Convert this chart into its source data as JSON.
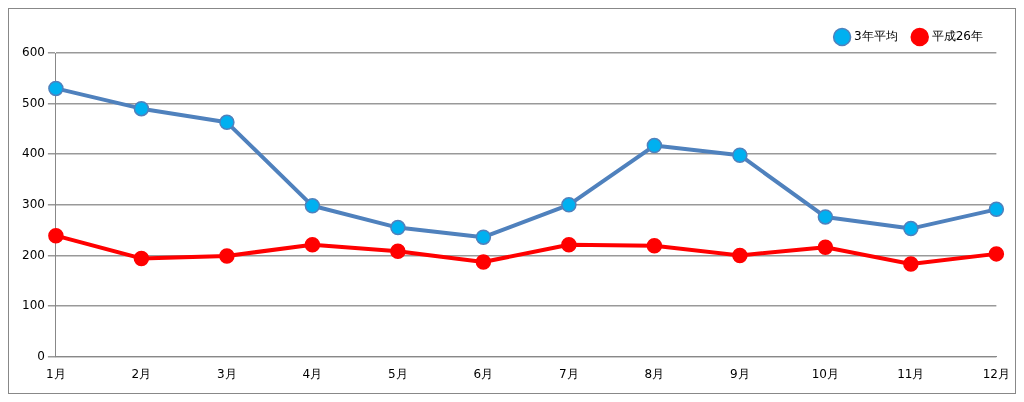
{
  "chart_data": {
    "type": "line",
    "categories": [
      "1月",
      "2月",
      "3月",
      "4月",
      "5月",
      "6月",
      "7月",
      "8月",
      "9月",
      "10月",
      "11月",
      "12月"
    ],
    "series": [
      {
        "name": "3年平均",
        "color": "#4f81bd",
        "values": [
          530,
          490,
          463,
          298,
          255,
          236,
          300,
          417,
          398,
          276,
          253,
          291
        ]
      },
      {
        "name": "平成26年",
        "color": "#ff0000",
        "values": [
          239,
          194,
          199,
          221,
          208,
          187,
          221,
          219,
          200,
          216,
          183,
          203
        ]
      }
    ],
    "ylim": [
      0,
      600
    ],
    "yticks": [
      0,
      100,
      200,
      300,
      400,
      500,
      600
    ],
    "grid": "y",
    "legend": "top right",
    "marker": "circle",
    "line_style": "solid"
  }
}
